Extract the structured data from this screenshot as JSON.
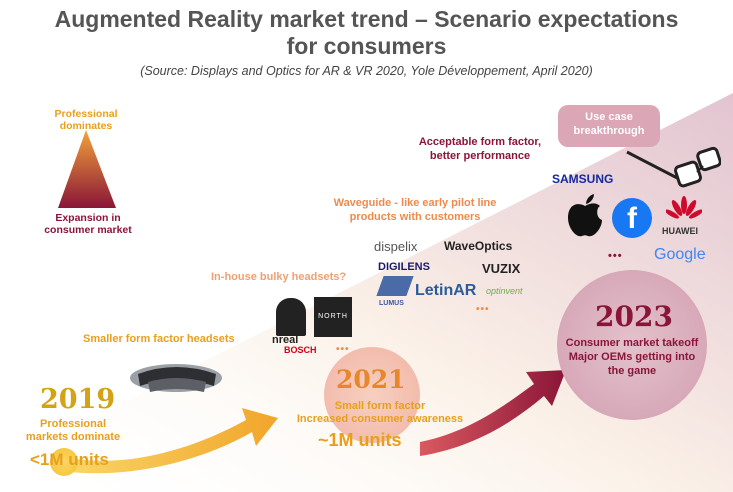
{
  "title_line1": "Augmented Reality market trend – Scenario expectations",
  "title_line2": "for consumers",
  "subtitle": "(Source: Displays and Optics for AR & VR 2020, Yole Développement, April 2020)",
  "triangle": {
    "top_label_line1": "Professional",
    "top_label_line2": "dominates",
    "bottom_label_line1": "Expansion in",
    "bottom_label_line2": "consumer market"
  },
  "stages": [
    {
      "label_line1": "Smaller form factor headsets"
    },
    {
      "label_line1": "In-house bulky headsets?"
    },
    {
      "label_line1": "Waveguide - like early pilot line",
      "label_line2": "products with customers"
    },
    {
      "label_line1": "Acceptable form factor,",
      "label_line2": "better performance"
    },
    {
      "label_line1": "Use case",
      "label_line2": "breakthrough"
    }
  ],
  "milestones": [
    {
      "year": "2019",
      "line1": "Professional",
      "line2": "markets dominate",
      "units": "<1M units"
    },
    {
      "year": "2021",
      "line1": "Small form factor",
      "line2": "Increased consumer awareness",
      "units": "~1M units"
    },
    {
      "year": "2023",
      "line1": "Consumer market takeoff",
      "line2": "Major OEMs getting into",
      "line3": "the game"
    }
  ],
  "logos": {
    "nreal": "nreal",
    "north": "NORTH",
    "bosch": "BOSCH",
    "dispelix": "dispelix",
    "waveoptics": "WaveOptics",
    "digilens": "DIGILENS",
    "vuzix": "VUZIX",
    "lumus": "LUMUS",
    "letinar": "LetinAR",
    "optinvent": "optinvent",
    "samsung": "SAMSUNG",
    "huawei": "HUAWEI",
    "google": "Google",
    "facebook": "f"
  },
  "ellipsis": "•••",
  "colors": {
    "orange": "#e8a01c",
    "maroon": "#8a1538",
    "pink": "#e6ccd6"
  }
}
